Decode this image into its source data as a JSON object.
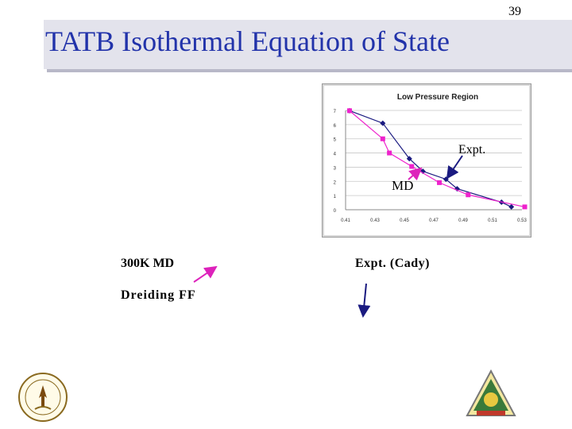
{
  "slide": {
    "page_number": "39",
    "title": "TATB Isothermal Equation of State"
  },
  "annotations": {
    "expt": "Expt.",
    "md": "MD",
    "md_300k": "300K MD",
    "dreiding": "Dreiding FF",
    "expt_cady": "Expt. (Cady)"
  },
  "colors": {
    "title": "#2233aa",
    "expt_series": "#1a1a80",
    "md_series": "#ee22cc",
    "arrow_blue": "#1a1a80",
    "arrow_magenta": "#dd22bb"
  },
  "logos": {
    "left": "seal-icon",
    "right": "triangle-emblem-icon"
  },
  "chart_data": {
    "type": "line",
    "title": "Low Pressure Region",
    "xlabel": "",
    "ylabel": "",
    "x_ticks": [
      "0.41",
      "0.43",
      "0.45",
      "0.47",
      "0.49",
      "0.51",
      "0.53"
    ],
    "y_ticks": [
      "0",
      "1",
      "2",
      "3",
      "4",
      "5",
      "6",
      "7"
    ],
    "xlim": [
      0.41,
      0.53
    ],
    "ylim": [
      0,
      7
    ],
    "grid": true,
    "legend": "none",
    "series": [
      {
        "marker": "diamond",
        "color": "#1a1a80",
        "points": [
          [
            0.4127,
            6.98
          ],
          [
            0.4353,
            6.1
          ],
          [
            0.4534,
            3.6
          ],
          [
            0.4626,
            2.71
          ],
          [
            0.4783,
            2.15
          ],
          [
            0.4859,
            1.48
          ],
          [
            0.5161,
            0.53
          ],
          [
            0.5228,
            0.2
          ]
        ]
      },
      {
        "marker": "square",
        "color": "#ee22cc",
        "points": [
          [
            0.4127,
            6.98
          ],
          [
            0.4353,
            5.0
          ],
          [
            0.4398,
            4.0
          ],
          [
            0.455,
            3.05
          ],
          [
            0.4738,
            1.91
          ],
          [
            0.4934,
            1.05
          ],
          [
            0.5319,
            0.2
          ]
        ]
      }
    ]
  }
}
